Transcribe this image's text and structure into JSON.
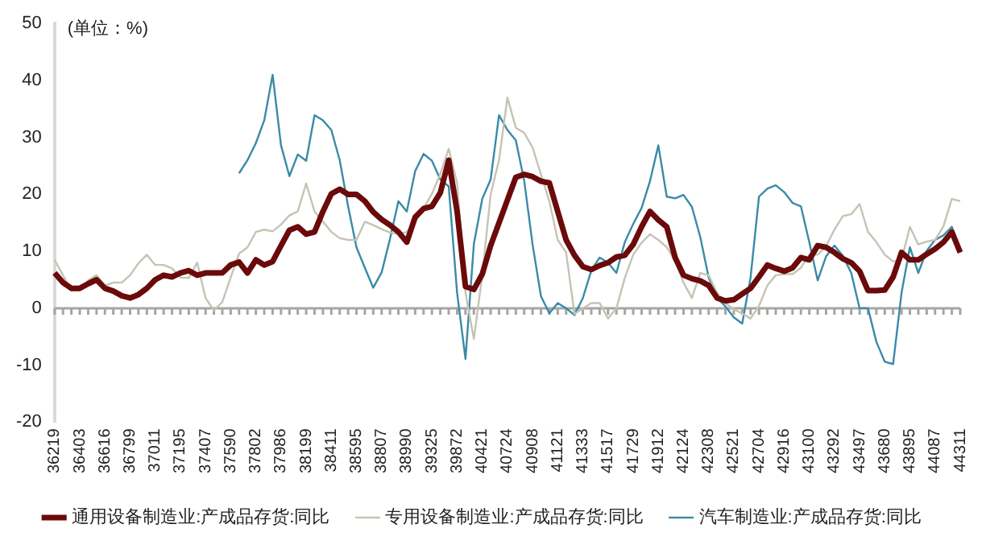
{
  "chart_data": {
    "type": "line",
    "annotations": [
      "(单位：%)"
    ],
    "categories": [
      "36219",
      null,
      null,
      "36403",
      null,
      null,
      "36616",
      null,
      null,
      "36799",
      null,
      null,
      "37011",
      null,
      null,
      "37195",
      null,
      null,
      "37407",
      null,
      null,
      "37590",
      null,
      null,
      "37802",
      null,
      null,
      "37986",
      null,
      null,
      "38199",
      null,
      null,
      "38411",
      null,
      null,
      "38595",
      null,
      null,
      "38807",
      null,
      null,
      "38990",
      null,
      null,
      "39325",
      null,
      null,
      "39872",
      null,
      null,
      "40421",
      null,
      null,
      "40724",
      null,
      null,
      "40908",
      null,
      null,
      "41121",
      null,
      null,
      "41333",
      null,
      null,
      "41517",
      null,
      null,
      "41729",
      null,
      null,
      "41912",
      null,
      null,
      "42124",
      null,
      null,
      "42308",
      null,
      null,
      "42521",
      null,
      null,
      "42704",
      null,
      null,
      "42916",
      null,
      null,
      "43100",
      null,
      null,
      "43292",
      null,
      null,
      "43497",
      null,
      null,
      "43680",
      null,
      null,
      "43895",
      null,
      null,
      "44087",
      null,
      null,
      "44311"
    ],
    "series": [
      {
        "name": "通用设备制造业:产成品存货:同比",
        "color": "#6b0a0a",
        "values": [
          6.2,
          4.5,
          3.5,
          3.5,
          4.3,
          5,
          3.5,
          3,
          2.2,
          1.8,
          2.4,
          3.5,
          5,
          5.8,
          5.5,
          6.2,
          6.6,
          5.8,
          6.2,
          6.2,
          6.2,
          7.6,
          8.1,
          6.2,
          8.5,
          7.6,
          8.2,
          11,
          13.7,
          14.3,
          13,
          13.4,
          17,
          20.1,
          20.9,
          20,
          20,
          18.8,
          16.9,
          15.6,
          14.6,
          13.4,
          11.6,
          16,
          17.5,
          17.9,
          20.3,
          26,
          17,
          3.8,
          3.3,
          6,
          11,
          15,
          19,
          23,
          23.5,
          23.1,
          22.3,
          22,
          17,
          12,
          9.3,
          7.3,
          6.8,
          7.5,
          8,
          9,
          9.3,
          11.2,
          14.3,
          17,
          15.5,
          14.3,
          8.9,
          5.8,
          5.2,
          4.8,
          4,
          1.8,
          1.3,
          1.5,
          2.5,
          3.5,
          5.5,
          7.6,
          7,
          6.5,
          7.1,
          8.9,
          8.5,
          11,
          10.7,
          9.8,
          8.7,
          8,
          6.5,
          3.1,
          3.1,
          3.2,
          5.5,
          9.8,
          8.5,
          8.5,
          9.5,
          10.4,
          11.6,
          13.4,
          9.8
        ]
      },
      {
        "name": "专用设备制造业:产成品存货:同比",
        "color": "#c4c4b4",
        "values": [
          8.5,
          5.8,
          3.1,
          3.2,
          4.9,
          5.8,
          4,
          4.5,
          4.5,
          5.8,
          7.9,
          9.4,
          7.6,
          7.6,
          7,
          5.4,
          5.3,
          8,
          1.8,
          -0.4,
          1.1,
          5.4,
          9.6,
          10.7,
          13.4,
          13.8,
          13.5,
          14.7,
          16.3,
          17,
          21.9,
          17,
          15.2,
          13.4,
          12.3,
          12,
          12,
          15.2,
          14.6,
          13.9,
          13.3,
          13,
          13.4,
          15.2,
          17.6,
          20.1,
          23.6,
          28,
          22,
          2.7,
          -5.4,
          5.8,
          20,
          26,
          37,
          31.7,
          30.8,
          28.2,
          23.5,
          18.8,
          12,
          9.8,
          -1,
          0,
          0.9,
          0.9,
          -1.8,
          0,
          5.3,
          9.4,
          11.5,
          13,
          12,
          10.7,
          8.3,
          4.5,
          1.8,
          6.2,
          5.8,
          2.7,
          0.9,
          -0.2,
          -0.9,
          -1.8,
          0.4,
          4,
          5.8,
          6,
          6,
          7.1,
          9.4,
          9.4,
          10.9,
          13.8,
          16.2,
          16.5,
          18.3,
          13.4,
          11.6,
          9.4,
          8.2,
          8.5,
          14.3,
          11.2,
          11.7,
          12,
          14.4,
          19.2,
          18.8
        ]
      },
      {
        "name": "汽车制造业:产成品存货:同比",
        "color": "#3a8aa8",
        "values": [
          null,
          null,
          null,
          null,
          null,
          null,
          null,
          null,
          null,
          null,
          null,
          null,
          null,
          null,
          null,
          null,
          null,
          null,
          null,
          null,
          null,
          null,
          23.7,
          26,
          29,
          33,
          41,
          28.6,
          23.2,
          27,
          25.9,
          33.9,
          33,
          31.3,
          26,
          17.9,
          10.7,
          7.1,
          3.6,
          6.3,
          12.2,
          18.8,
          17,
          24.1,
          27.1,
          25.9,
          22.6,
          21.4,
          2.7,
          -8.9,
          11.3,
          19.2,
          22.6,
          33.9,
          31.3,
          29.5,
          22.4,
          11.2,
          2.1,
          -0.9,
          0.9,
          0,
          -1.2,
          1.8,
          6.6,
          8.9,
          8,
          6.2,
          11.6,
          14.8,
          17.6,
          22.3,
          28.6,
          19.6,
          19.3,
          19.9,
          17.8,
          12.5,
          5.4,
          1.8,
          0.3,
          -1.6,
          -2.7,
          5.4,
          19.6,
          21,
          21.6,
          20.4,
          18.5,
          17.9,
          11.6,
          4.9,
          9.1,
          11,
          9.2,
          6.2,
          0,
          0,
          -5.9,
          -9.4,
          -9.8,
          2.7,
          10.7,
          6.2,
          10.1,
          12,
          12.8,
          14.3,
          9.8
        ]
      }
    ],
    "ylim": [
      -20,
      50
    ],
    "yticks": [
      -20,
      -10,
      0,
      10,
      20,
      30,
      40,
      50
    ],
    "ref_lines": [
      {
        "axis": "y",
        "value": 0,
        "color": "#a6a6a6"
      }
    ],
    "grid": false,
    "legend": "bottom",
    "marker": "none",
    "line_style": "solid"
  }
}
